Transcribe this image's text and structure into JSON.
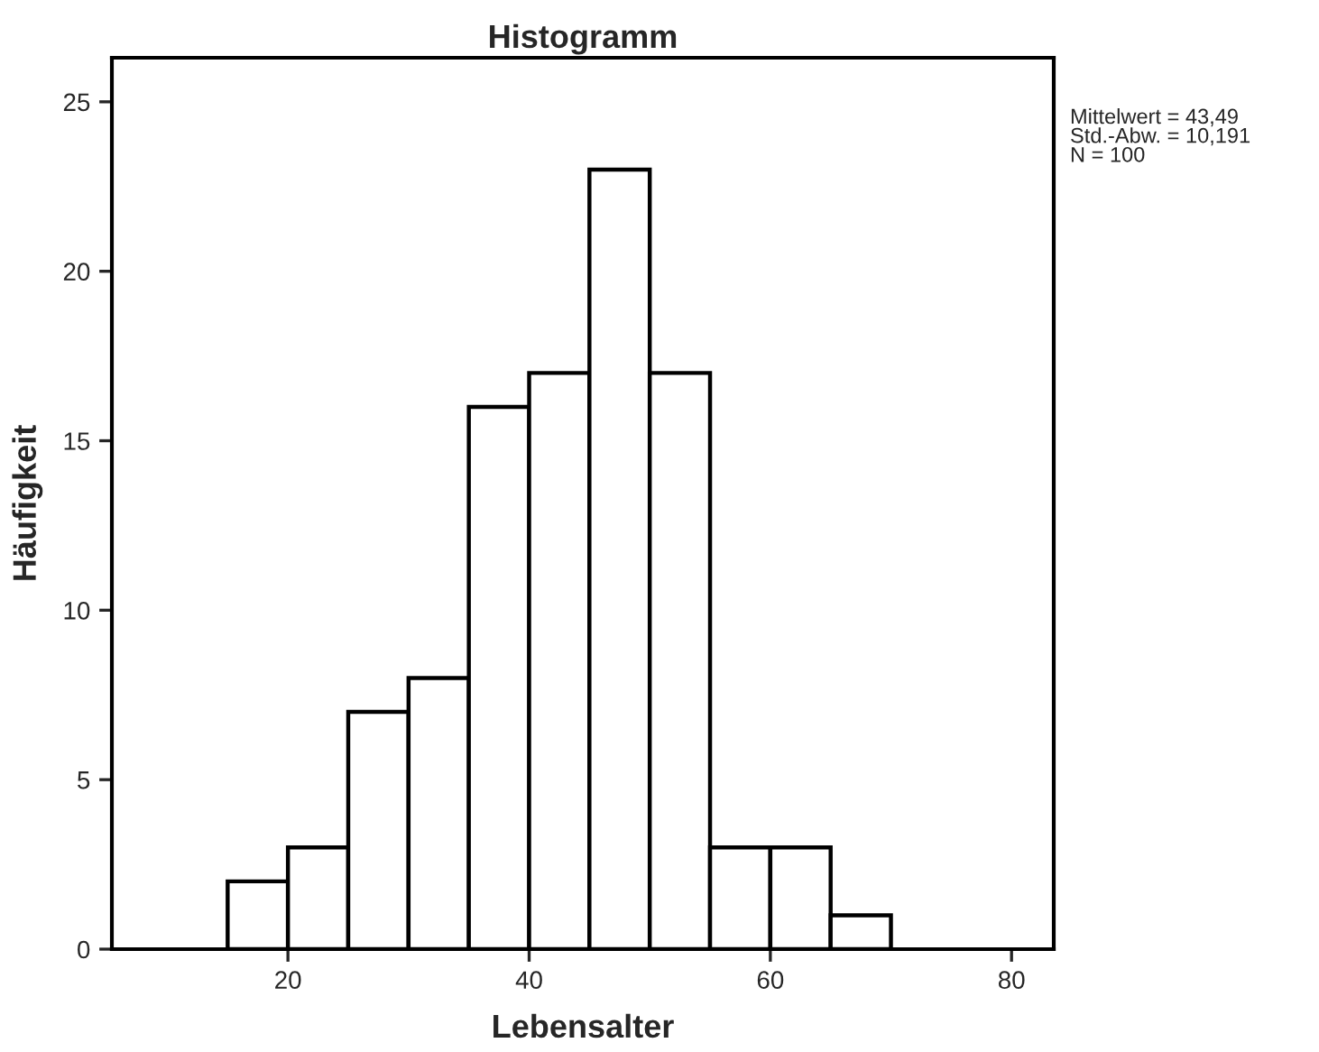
{
  "chart_data": {
    "type": "histogram",
    "title": "Histogramm",
    "xlabel": "Lebensalter",
    "ylabel": "Häufigkeit",
    "bins": [
      15,
      20,
      25,
      30,
      35,
      40,
      45,
      50,
      55,
      60,
      65,
      70
    ],
    "values": [
      2,
      3,
      7,
      8,
      16,
      17,
      23,
      17,
      3,
      3,
      1
    ],
    "color": "#ffffff",
    "xlim": [
      5.4,
      83.5
    ],
    "xticks": [
      20,
      40,
      60,
      80
    ],
    "ylim": [
      0,
      26.3
    ],
    "yticks": [
      0,
      5,
      10,
      15,
      20,
      25
    ],
    "grid": false,
    "legend": false,
    "annotations": [
      "Mittelwert = 43,49\nStd.-Abw. = 10,191\nN = 100"
    ]
  }
}
